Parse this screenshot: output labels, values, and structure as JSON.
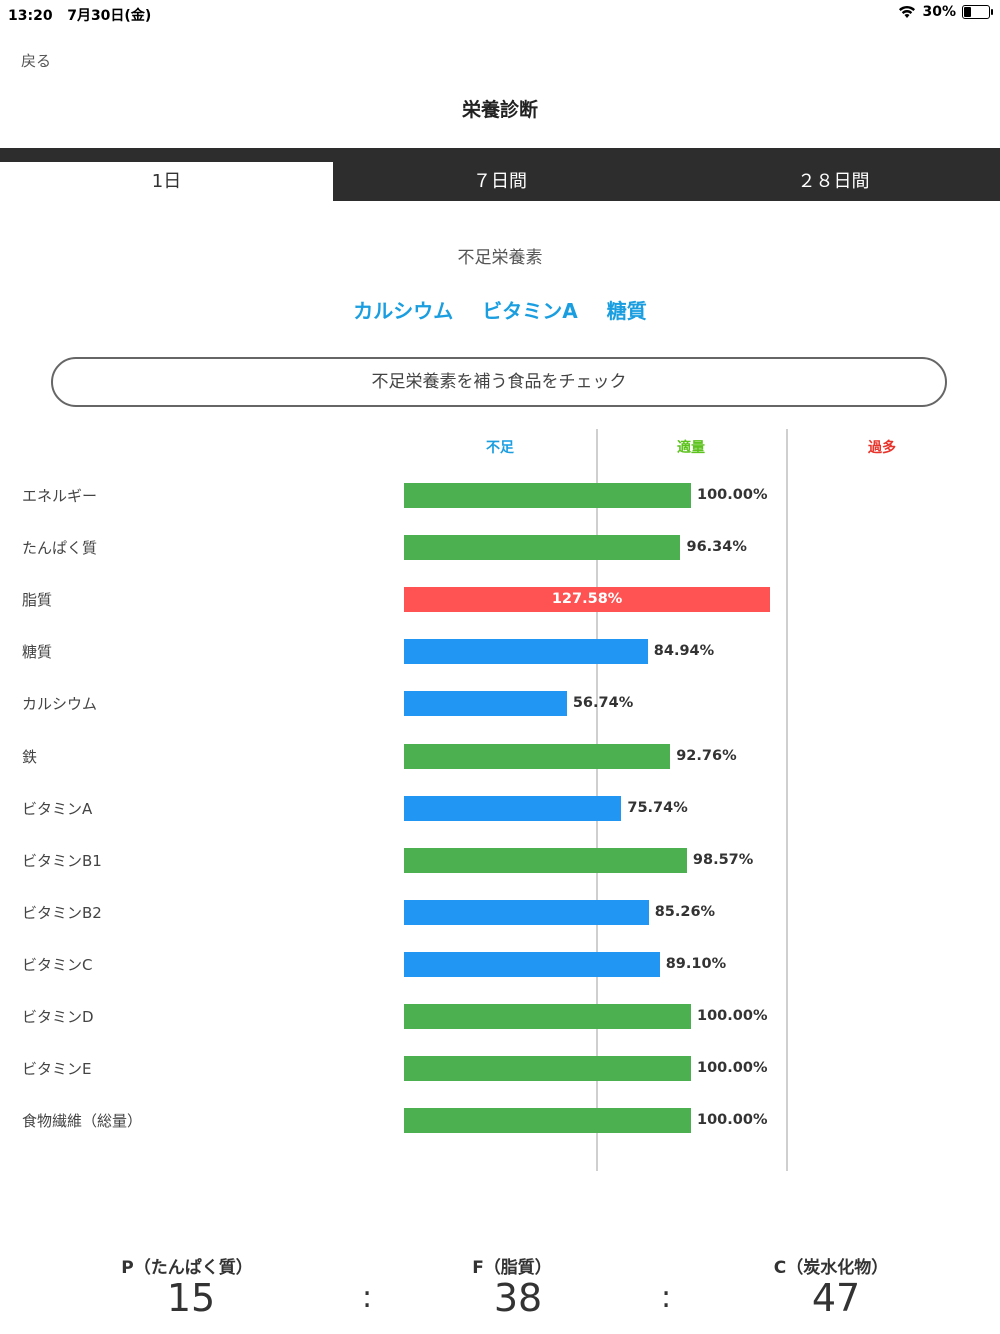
{
  "status": {
    "time": "13:20",
    "date": "7月30日(金)",
    "battery_text": "30%",
    "battery_level": 0.3
  },
  "nav": {
    "back_label": "戻る",
    "title": "栄養診断"
  },
  "tabs": [
    {
      "label": "1日",
      "active": true
    },
    {
      "label": "７日間",
      "active": false
    },
    {
      "label": "２８日間",
      "active": false
    }
  ],
  "deficiency": {
    "label": "不足栄養素",
    "items": [
      "カルシウム",
      "ビタミンA",
      "糖質"
    ],
    "check_button": "不足栄養素を補う食品をチェック"
  },
  "chart_data": {
    "type": "bar",
    "orientation": "horizontal",
    "zones": [
      {
        "label": "不足",
        "color": "#1a9ee0"
      },
      {
        "label": "適量",
        "color": "#5cc21c"
      },
      {
        "label": "過多",
        "color": "#e8332a"
      }
    ],
    "status_colors": {
      "不足": "#2196f3",
      "適量": "#4caf50",
      "過多": "#ff5252"
    },
    "categories": [
      "エネルギー",
      "たんぱく質",
      "脂質",
      "糖質",
      "カルシウム",
      "鉄",
      "ビタミンA",
      "ビタミンB1",
      "ビタミンB2",
      "ビタミンC",
      "ビタミンD",
      "ビタミンE",
      "食物繊維（総量）"
    ],
    "values": [
      100.0,
      96.34,
      127.58,
      84.94,
      56.74,
      92.76,
      75.74,
      98.57,
      85.26,
      89.1,
      100.0,
      100.0,
      100.0
    ],
    "value_labels": [
      "100.00%",
      "96.34%",
      "127.58%",
      "84.94%",
      "56.74%",
      "92.76%",
      "75.74%",
      "98.57%",
      "85.26%",
      "89.10%",
      "100.00%",
      "100.00%",
      "100.00%"
    ],
    "statuses": [
      "適量",
      "適量",
      "過多",
      "不足",
      "不足",
      "適量",
      "不足",
      "適量",
      "不足",
      "不足",
      "適量",
      "適量",
      "適量"
    ]
  },
  "pfc": {
    "items": [
      {
        "label": "P（たんぱく質）",
        "value": "15"
      },
      {
        "label": "F（脂質）",
        "value": "38"
      },
      {
        "label": "C（炭水化物）",
        "value": "47"
      }
    ],
    "separator": ":"
  }
}
